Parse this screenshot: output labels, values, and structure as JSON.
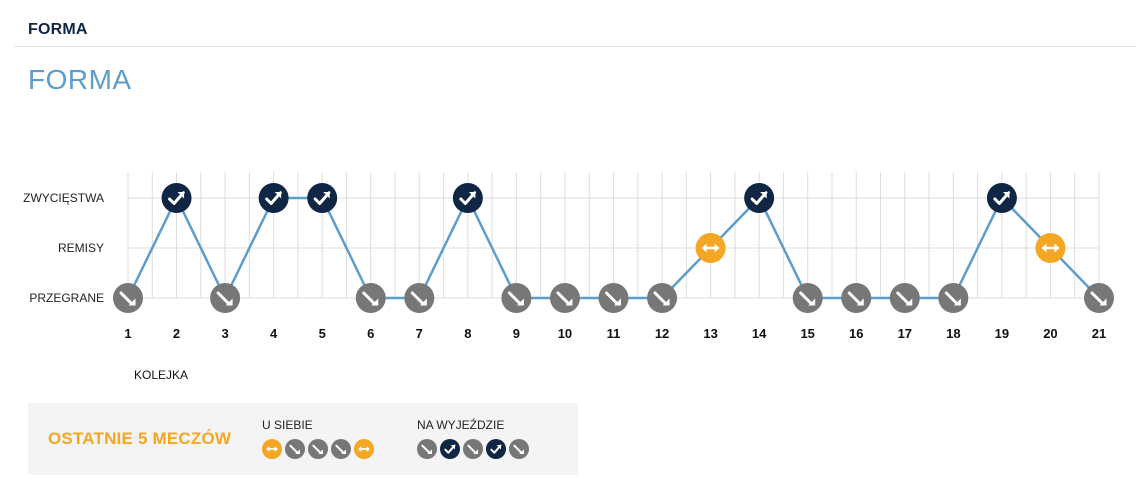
{
  "header": {
    "title": "FORMA"
  },
  "page_title": "FORMA",
  "colors": {
    "win": "#0f2645",
    "draw": "#f5a623",
    "loss": "#777777",
    "line": "#5d9dcc",
    "grid": "#dddddd"
  },
  "chart_data": {
    "type": "line",
    "title": "",
    "xlabel": "KOLEJKA",
    "ylabel": "",
    "x": [
      1,
      2,
      3,
      4,
      5,
      6,
      7,
      8,
      9,
      10,
      11,
      12,
      13,
      14,
      15,
      16,
      17,
      18,
      19,
      20,
      21
    ],
    "y_categories": [
      "PRZEGRANE",
      "REMISY",
      "ZWYCIĘSTWA"
    ],
    "results": [
      "L",
      "W",
      "L",
      "W",
      "W",
      "L",
      "L",
      "W",
      "L",
      "L",
      "L",
      "L",
      "D",
      "W",
      "L",
      "L",
      "L",
      "L",
      "W",
      "D",
      "L"
    ],
    "legend": {
      "W": "ZWYCIĘSTWA",
      "D": "REMISY",
      "L": "PRZEGRANE"
    },
    "grid": true
  },
  "summary": {
    "title": "OSTATNIE 5 MECZÓW",
    "home": {
      "label": "U SIEBIE",
      "results": [
        "D",
        "L",
        "L",
        "L",
        "D"
      ]
    },
    "away": {
      "label": "NA WYJEŹDZIE",
      "results": [
        "L",
        "W",
        "L",
        "W",
        "L"
      ]
    }
  }
}
